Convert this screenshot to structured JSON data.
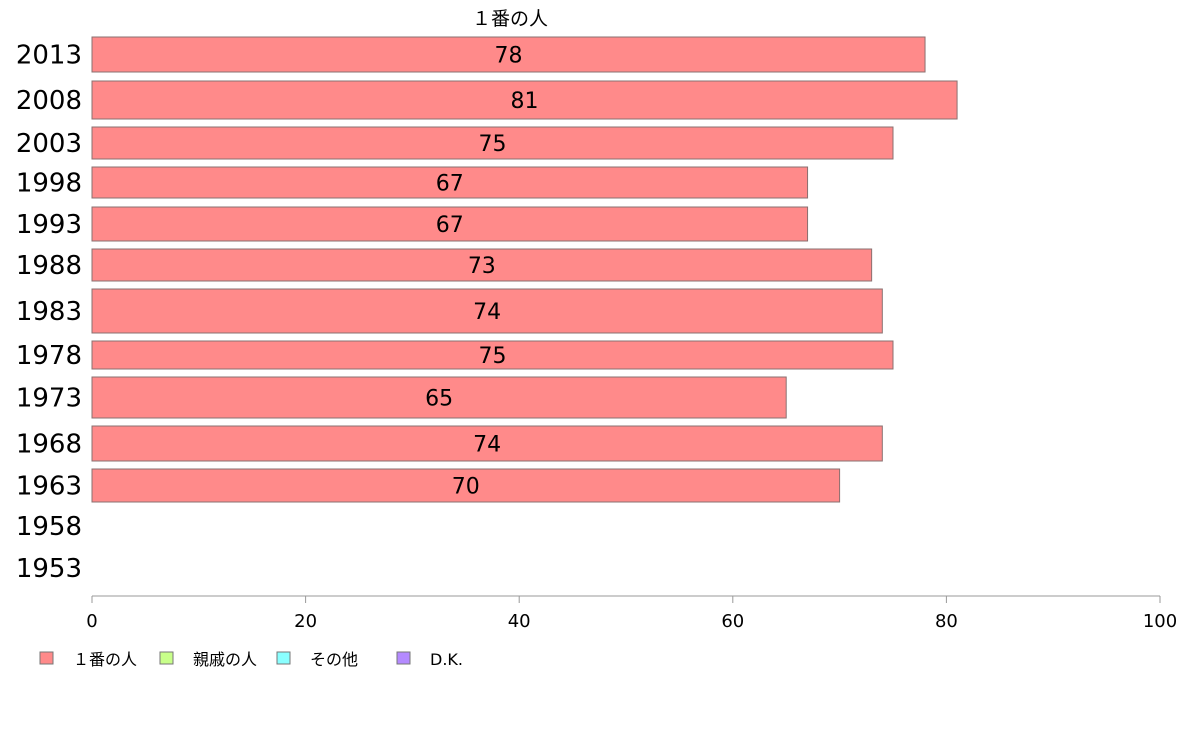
{
  "chart_data": {
    "type": "bar",
    "orientation": "horizontal",
    "series_title": "１番の人",
    "categories": [
      "2013",
      "2008",
      "2003",
      "1998",
      "1993",
      "1988",
      "1983",
      "1978",
      "1973",
      "1968",
      "1963",
      "1958",
      "1953"
    ],
    "series": [
      {
        "name": "１番の人",
        "color": "#ff8a8a",
        "values": [
          78,
          81,
          75,
          67,
          67,
          73,
          74,
          75,
          65,
          74,
          70,
          null,
          null
        ]
      }
    ],
    "xlim": [
      0,
      100
    ],
    "xticks": [
      "0",
      "20",
      "40",
      "60",
      "80",
      "100"
    ],
    "legend_placement": "bottom-left",
    "legend": [
      {
        "label": "１番の人",
        "color": "#ff8a8a"
      },
      {
        "label": "親戚の人",
        "color": "#c8ff8a"
      },
      {
        "label": "その他",
        "color": "#8affff"
      },
      {
        "label": "D.K.",
        "color": "#b48aff"
      }
    ],
    "grid": false
  }
}
